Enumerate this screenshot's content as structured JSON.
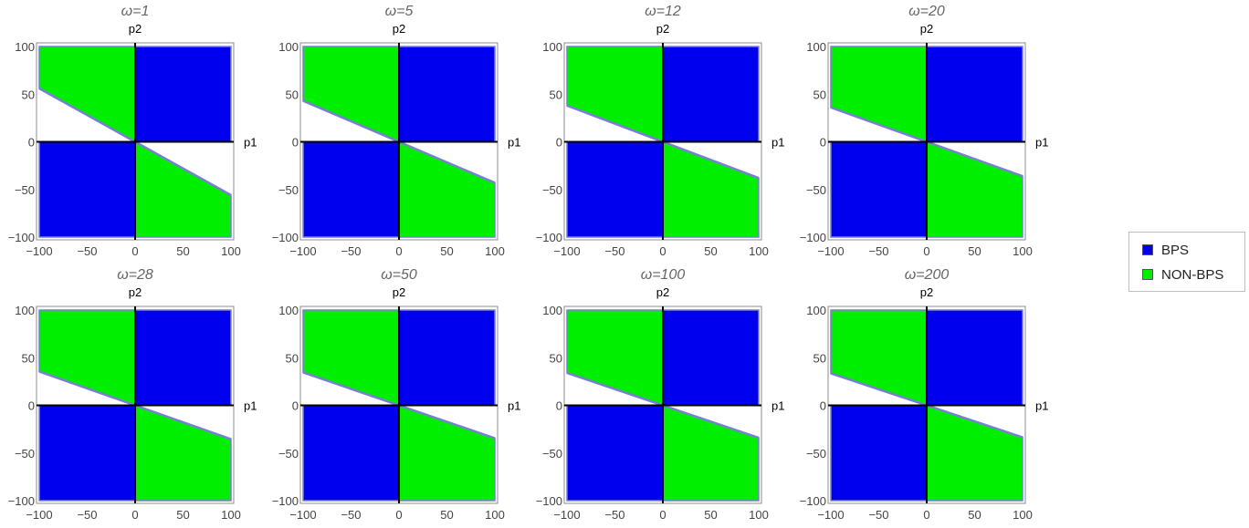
{
  "chart_data": [
    {
      "type": "area",
      "title": "ω=1",
      "xlabel": "p1",
      "ylabel": "p2",
      "xlim": [
        -100,
        100
      ],
      "ylim": [
        -100,
        100
      ],
      "xticks": [
        "−100",
        "−50",
        "0",
        "50",
        "100"
      ],
      "yticks": [
        "100",
        "50",
        "0",
        "−50",
        "−100"
      ],
      "boundary_slope": -0.56
    },
    {
      "type": "area",
      "title": "ω=5",
      "xlabel": "p1",
      "ylabel": "p2",
      "xlim": [
        -100,
        100
      ],
      "ylim": [
        -100,
        100
      ],
      "xticks": [
        "−100",
        "−50",
        "0",
        "50",
        "100"
      ],
      "yticks": [
        "100",
        "50",
        "0",
        "−50",
        "−100"
      ],
      "boundary_slope": -0.43
    },
    {
      "type": "area",
      "title": "ω=12",
      "xlabel": "p1",
      "ylabel": "p2",
      "xlim": [
        -100,
        100
      ],
      "ylim": [
        -100,
        100
      ],
      "xticks": [
        "−100",
        "−50",
        "0",
        "50",
        "100"
      ],
      "yticks": [
        "100",
        "50",
        "0",
        "−50",
        "−100"
      ],
      "boundary_slope": -0.38
    },
    {
      "type": "area",
      "title": "ω=20",
      "xlabel": "p1",
      "ylabel": "p2",
      "xlim": [
        -100,
        100
      ],
      "ylim": [
        -100,
        100
      ],
      "xticks": [
        "−100",
        "−50",
        "0",
        "50",
        "100"
      ],
      "yticks": [
        "100",
        "50",
        "0",
        "−50",
        "−100"
      ],
      "boundary_slope": -0.36
    },
    {
      "type": "area",
      "title": "ω=28",
      "xlabel": "p1",
      "ylabel": "p2",
      "xlim": [
        -100,
        100
      ],
      "ylim": [
        -100,
        100
      ],
      "xticks": [
        "−100",
        "−50",
        "0",
        "50",
        "100"
      ],
      "yticks": [
        "100",
        "50",
        "0",
        "−50",
        "−100"
      ],
      "boundary_slope": -0.355
    },
    {
      "type": "area",
      "title": "ω=50",
      "xlabel": "p1",
      "ylabel": "p2",
      "xlim": [
        -100,
        100
      ],
      "ylim": [
        -100,
        100
      ],
      "xticks": [
        "−100",
        "−50",
        "0",
        "50",
        "100"
      ],
      "yticks": [
        "100",
        "50",
        "0",
        "−50",
        "−100"
      ],
      "boundary_slope": -0.345
    },
    {
      "type": "area",
      "title": "ω=100",
      "xlabel": "p1",
      "ylabel": "p2",
      "xlim": [
        -100,
        100
      ],
      "ylim": [
        -100,
        100
      ],
      "xticks": [
        "−100",
        "−50",
        "0",
        "50",
        "100"
      ],
      "yticks": [
        "100",
        "50",
        "0",
        "−50",
        "−100"
      ],
      "boundary_slope": -0.34
    },
    {
      "type": "area",
      "title": "ω=200",
      "xlabel": "p1",
      "ylabel": "p2",
      "xlim": [
        -100,
        100
      ],
      "ylim": [
        -100,
        100
      ],
      "xticks": [
        "−100",
        "−50",
        "0",
        "50",
        "100"
      ],
      "yticks": [
        "100",
        "50",
        "0",
        "−50",
        "−100"
      ],
      "boundary_slope": -0.335
    }
  ],
  "legend": {
    "placement": "right",
    "items": [
      {
        "label": "BPS",
        "color": "#0000ee"
      },
      {
        "label": "NON-BPS",
        "color": "#00ee00"
      }
    ]
  },
  "colors": {
    "bps": "#0000ee",
    "nonbps": "#00ee00",
    "boundary": "#7a7fd6",
    "frame": "#8c8c8c",
    "title": "#666666",
    "tick": "#444444"
  }
}
